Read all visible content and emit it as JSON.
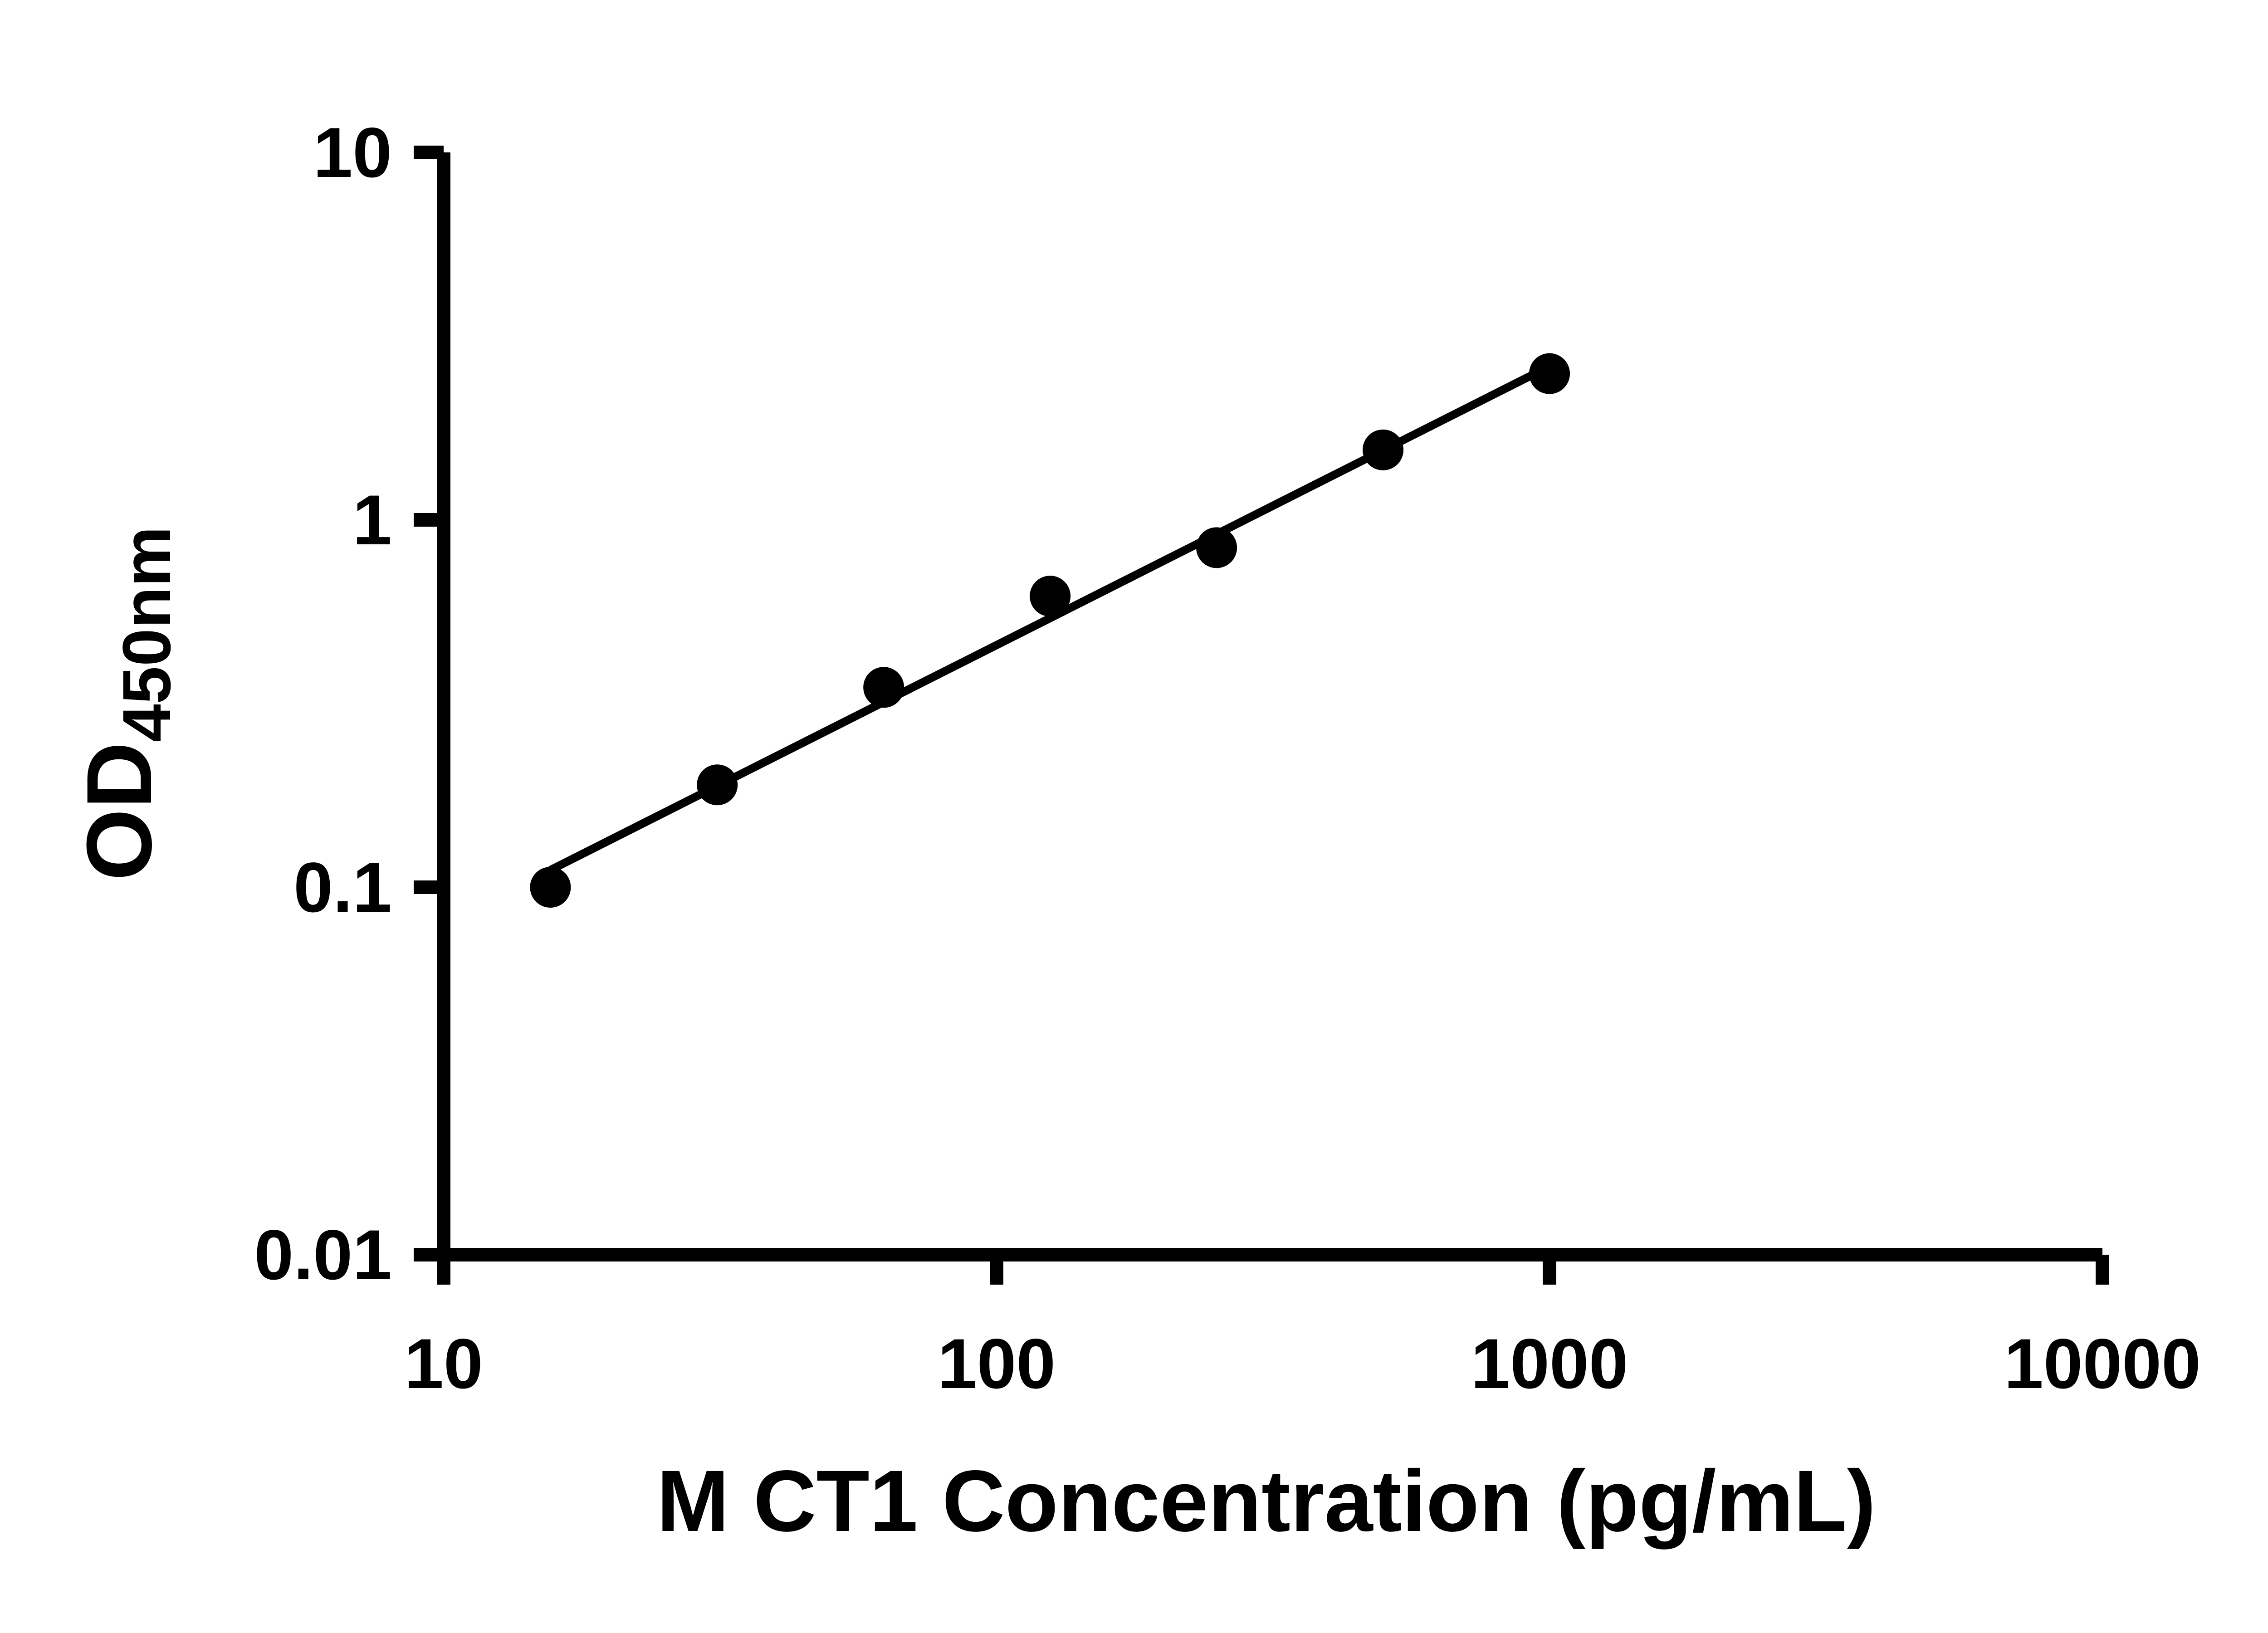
{
  "chart_data": {
    "type": "scatter",
    "title": "",
    "xlabel": "M CT1 Concentration (pg/mL)",
    "ylabel": "OD",
    "ylabel_subscript": "450nm",
    "x_scale": "log",
    "y_scale": "log",
    "xlim": [
      10,
      10000
    ],
    "ylim": [
      0.01,
      10
    ],
    "x_ticks": [
      10,
      100,
      1000,
      10000
    ],
    "y_ticks": [
      0.01,
      0.1,
      1,
      10
    ],
    "x_tick_labels": [
      "10",
      "100",
      "1000",
      "10000"
    ],
    "y_tick_labels": [
      "0.01",
      "0.1",
      "1",
      "10"
    ],
    "grid": false,
    "legend": false,
    "trendline": "linear-loglog",
    "series": [
      {
        "name": "standard-curve",
        "x": [
          15.6,
          31.25,
          62.5,
          125,
          250,
          500,
          1000
        ],
        "y": [
          0.1,
          0.19,
          0.35,
          0.62,
          0.84,
          1.55,
          2.5
        ]
      }
    ],
    "colors": {
      "axis": "#000000",
      "marker": "#000000",
      "trend_line": "#000000",
      "background": "#ffffff"
    }
  }
}
